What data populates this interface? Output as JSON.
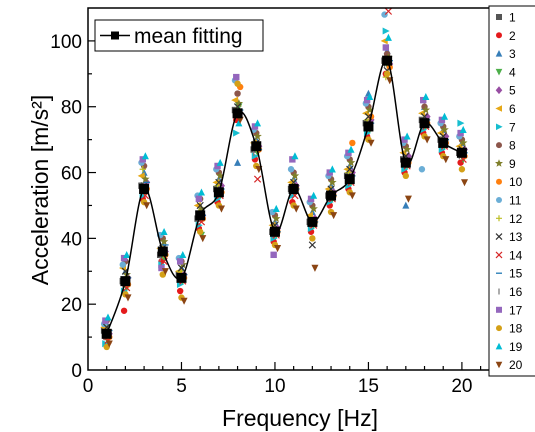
{
  "chart_data": {
    "type": "scatter",
    "title": "",
    "xlabel": "Frequency [Hz]",
    "ylabel": "Acceleration [m/s²]",
    "xlim": [
      0,
      23
    ],
    "ylim": [
      0,
      110
    ],
    "xticks": [
      0,
      5,
      10,
      15,
      20
    ],
    "yticks": [
      0,
      20,
      40,
      60,
      80,
      100
    ],
    "x": [
      1,
      2,
      3,
      4,
      5,
      6,
      7,
      8,
      9,
      10,
      11,
      12,
      13,
      14,
      15,
      16,
      17,
      18,
      19,
      20
    ],
    "legend_position": "right",
    "series": [
      {
        "name": "1",
        "color": "#555555",
        "marker": "square",
        "values": [
          12,
          27,
          56,
          35,
          29,
          46,
          55,
          79,
          67,
          42,
          55,
          45,
          53,
          59,
          75,
          94,
          64,
          76,
          70,
          66
        ]
      },
      {
        "name": "2",
        "color": "#e41a1c",
        "marker": "circle",
        "values": [
          10,
          18,
          52,
          33,
          24,
          43,
          51,
          76,
          64,
          39,
          51,
          42,
          50,
          55,
          71,
          90,
          60,
          72,
          66,
          63
        ]
      },
      {
        "name": "3",
        "color": "#377eb8",
        "marker": "triangle-up",
        "values": [
          14,
          30,
          60,
          38,
          31,
          48,
          58,
          63,
          70,
          45,
          58,
          48,
          56,
          62,
          84,
          97,
          50,
          80,
          73,
          69
        ]
      },
      {
        "name": "4",
        "color": "#4daf4a",
        "marker": "triangle-down",
        "values": [
          9,
          25,
          54,
          34,
          27,
          41,
          53,
          80,
          66,
          41,
          54,
          44,
          52,
          57,
          73,
          92,
          62,
          74,
          68,
          64
        ]
      },
      {
        "name": "5",
        "color": "#984ea3",
        "marker": "diamond",
        "values": [
          11,
          28,
          57,
          36,
          29,
          47,
          56,
          78,
          68,
          43,
          56,
          46,
          54,
          60,
          76,
          93,
          65,
          77,
          71,
          67
        ]
      },
      {
        "name": "6",
        "color": "#e6a817",
        "marker": "triangle-left",
        "values": [
          13,
          31,
          59,
          37,
          30,
          50,
          57,
          82,
          69,
          44,
          57,
          47,
          55,
          61,
          78,
          100,
          66,
          78,
          72,
          68
        ]
      },
      {
        "name": "7",
        "color": "#17becf",
        "marker": "triangle-right",
        "values": [
          8,
          24,
          53,
          32,
          26,
          44,
          52,
          72,
          65,
          40,
          53,
          43,
          51,
          56,
          72,
          103,
          61,
          73,
          67,
          75
        ]
      },
      {
        "name": "8",
        "color": "#8c564b",
        "marker": "hexagon",
        "values": [
          15,
          33,
          62,
          40,
          33,
          52,
          60,
          84,
          72,
          47,
          60,
          50,
          58,
          64,
          80,
          96,
          68,
          80,
          74,
          70
        ]
      },
      {
        "name": "9",
        "color": "#7f7f2a",
        "marker": "star",
        "values": [
          12,
          29,
          58,
          39,
          32,
          49,
          59,
          81,
          71,
          46,
          59,
          49,
          57,
          63,
          79,
          95,
          67,
          79,
          73,
          69
        ]
      },
      {
        "name": "10",
        "color": "#ff7f0e",
        "marker": "hexagon",
        "values": [
          10,
          26,
          55,
          35,
          28,
          46,
          54,
          86,
          67,
          42,
          55,
          45,
          53,
          69,
          77,
          92,
          63,
          75,
          69,
          65
        ]
      },
      {
        "name": "11",
        "color": "#6baed6",
        "marker": "circle",
        "values": [
          14,
          32,
          63,
          41,
          34,
          53,
          61,
          88,
          73,
          48,
          61,
          51,
          59,
          65,
          81,
          108,
          69,
          61,
          75,
          71
        ]
      },
      {
        "name": "12",
        "color": "#bcbd22",
        "marker": "plus",
        "values": [
          11,
          27,
          61,
          36,
          30,
          48,
          56,
          79,
          68,
          43,
          56,
          46,
          54,
          60,
          76,
          89,
          64,
          76,
          70,
          66
        ]
      },
      {
        "name": "13",
        "color": "#333333",
        "marker": "x",
        "values": [
          13,
          30,
          56,
          37,
          31,
          50,
          57,
          80,
          69,
          44,
          57,
          38,
          55,
          61,
          77,
          91,
          65,
          77,
          71,
          67
        ]
      },
      {
        "name": "14",
        "color": "#d62728",
        "marker": "x",
        "values": [
          9,
          25,
          53,
          33,
          27,
          45,
          53,
          77,
          58,
          41,
          53,
          44,
          52,
          57,
          74,
          109,
          62,
          74,
          68,
          64
        ]
      },
      {
        "name": "15",
        "color": "#1f77b4",
        "marker": "hline",
        "values": [
          12,
          28,
          57,
          38,
          29,
          47,
          55,
          79,
          67,
          42,
          55,
          45,
          53,
          59,
          75,
          94,
          64,
          76,
          70,
          66
        ]
      },
      {
        "name": "16",
        "color": "#7f7f7f",
        "marker": "vline",
        "values": [
          10,
          26,
          55,
          34,
          28,
          46,
          54,
          78,
          66,
          41,
          54,
          44,
          52,
          58,
          74,
          93,
          63,
          75,
          69,
          65
        ]
      },
      {
        "name": "17",
        "color": "#9467bd",
        "marker": "square",
        "values": [
          15,
          34,
          64,
          31,
          33,
          52,
          62,
          89,
          74,
          35,
          64,
          52,
          60,
          66,
          82,
          98,
          70,
          82,
          76,
          72
        ]
      },
      {
        "name": "18",
        "color": "#d4a017",
        "marker": "circle",
        "values": [
          7,
          23,
          51,
          29,
          22,
          42,
          50,
          87,
          62,
          38,
          50,
          40,
          48,
          54,
          70,
          90,
          59,
          71,
          65,
          61
        ]
      },
      {
        "name": "19",
        "color": "#00bcd4",
        "marker": "triangle-up",
        "values": [
          16,
          35,
          65,
          42,
          35,
          54,
          63,
          75,
          75,
          49,
          65,
          53,
          61,
          67,
          83,
          101,
          71,
          83,
          77,
          73
        ]
      },
      {
        "name": "20",
        "color": "#8b4513",
        "marker": "triangle-down",
        "values": [
          8,
          22,
          50,
          30,
          21,
          40,
          49,
          76,
          61,
          37,
          49,
          31,
          47,
          53,
          69,
          88,
          52,
          70,
          64,
          57
        ]
      }
    ],
    "mean_fitting": {
      "name": "mean fitting",
      "color": "#000000",
      "marker": "square",
      "x": [
        1,
        2,
        3,
        4,
        5,
        6,
        7,
        8,
        9,
        10,
        11,
        12,
        13,
        14,
        15,
        16,
        17,
        18,
        19,
        20
      ],
      "values": [
        11,
        27,
        55,
        36,
        28,
        47,
        54,
        78,
        68,
        42,
        55,
        45,
        53,
        58,
        74,
        94,
        63,
        75,
        69,
        66
      ]
    }
  }
}
